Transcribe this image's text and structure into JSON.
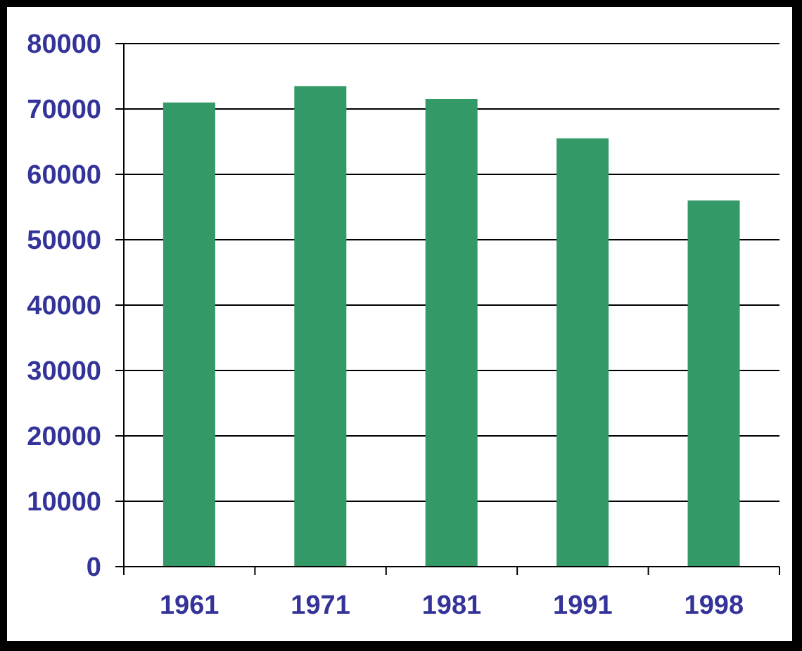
{
  "chart_data": {
    "type": "bar",
    "categories": [
      "1961",
      "1971",
      "1981",
      "1991",
      "1998"
    ],
    "values": [
      71000,
      73500,
      71500,
      65500,
      56000
    ],
    "color": "#339966",
    "ylim": [
      0,
      80000
    ],
    "yticks": [
      0,
      10000,
      20000,
      30000,
      40000,
      50000,
      60000,
      70000,
      80000
    ],
    "grid": "y"
  }
}
